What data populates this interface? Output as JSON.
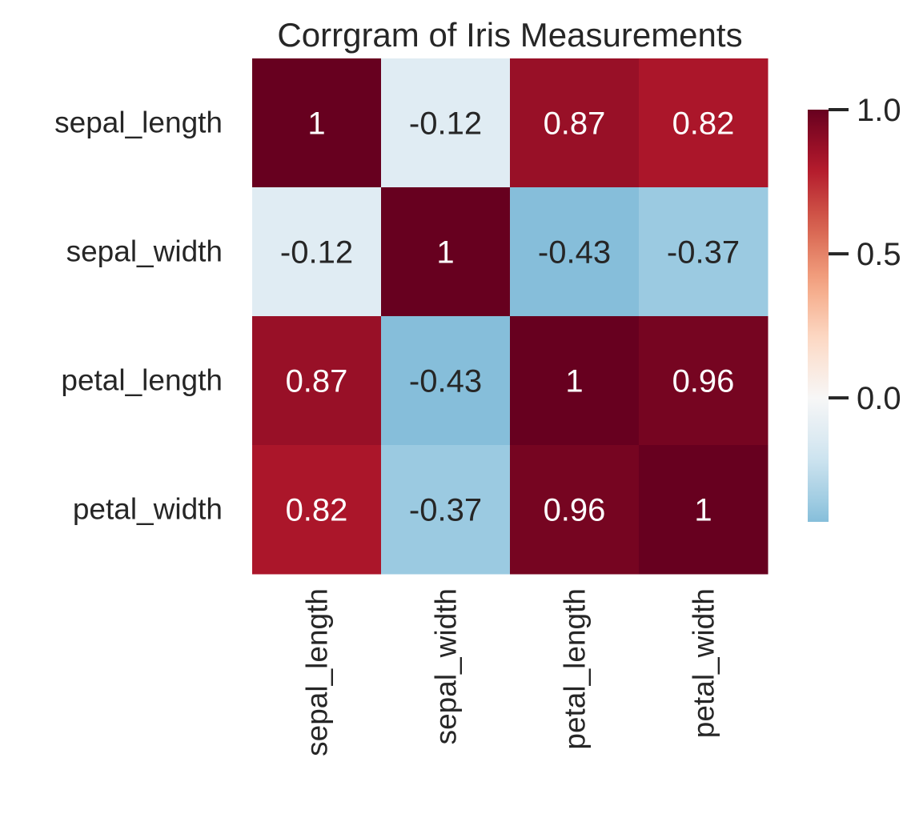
{
  "chart_data": {
    "type": "heatmap",
    "title": "Corrgram of Iris Measurements",
    "row_labels": [
      "sepal_length",
      "sepal_width",
      "petal_length",
      "petal_width"
    ],
    "col_labels": [
      "sepal_length",
      "sepal_width",
      "petal_length",
      "petal_width"
    ],
    "values": [
      [
        1,
        -0.12,
        0.87,
        0.82
      ],
      [
        -0.12,
        1,
        -0.43,
        -0.37
      ],
      [
        0.87,
        -0.43,
        1,
        0.96
      ],
      [
        0.82,
        -0.37,
        0.96,
        1
      ]
    ],
    "annotations": [
      [
        "1",
        "-0.12",
        "0.87",
        "0.82"
      ],
      [
        "-0.12",
        "1",
        "-0.43",
        "-0.37"
      ],
      [
        "0.87",
        "-0.43",
        "1",
        "0.96"
      ],
      [
        "0.82",
        "-0.37",
        "0.96",
        "1"
      ]
    ],
    "colormap": "RdBu_r",
    "center": 0,
    "colorbar": {
      "range": [
        -0.43,
        1.0
      ],
      "ticks": [
        1.0,
        0.5,
        0.0
      ],
      "tick_labels": [
        "1.0",
        "0.5",
        "0.0"
      ],
      "placement": "right"
    },
    "text_colors": {
      "dark": "#262626",
      "light": "#ffffff"
    }
  }
}
